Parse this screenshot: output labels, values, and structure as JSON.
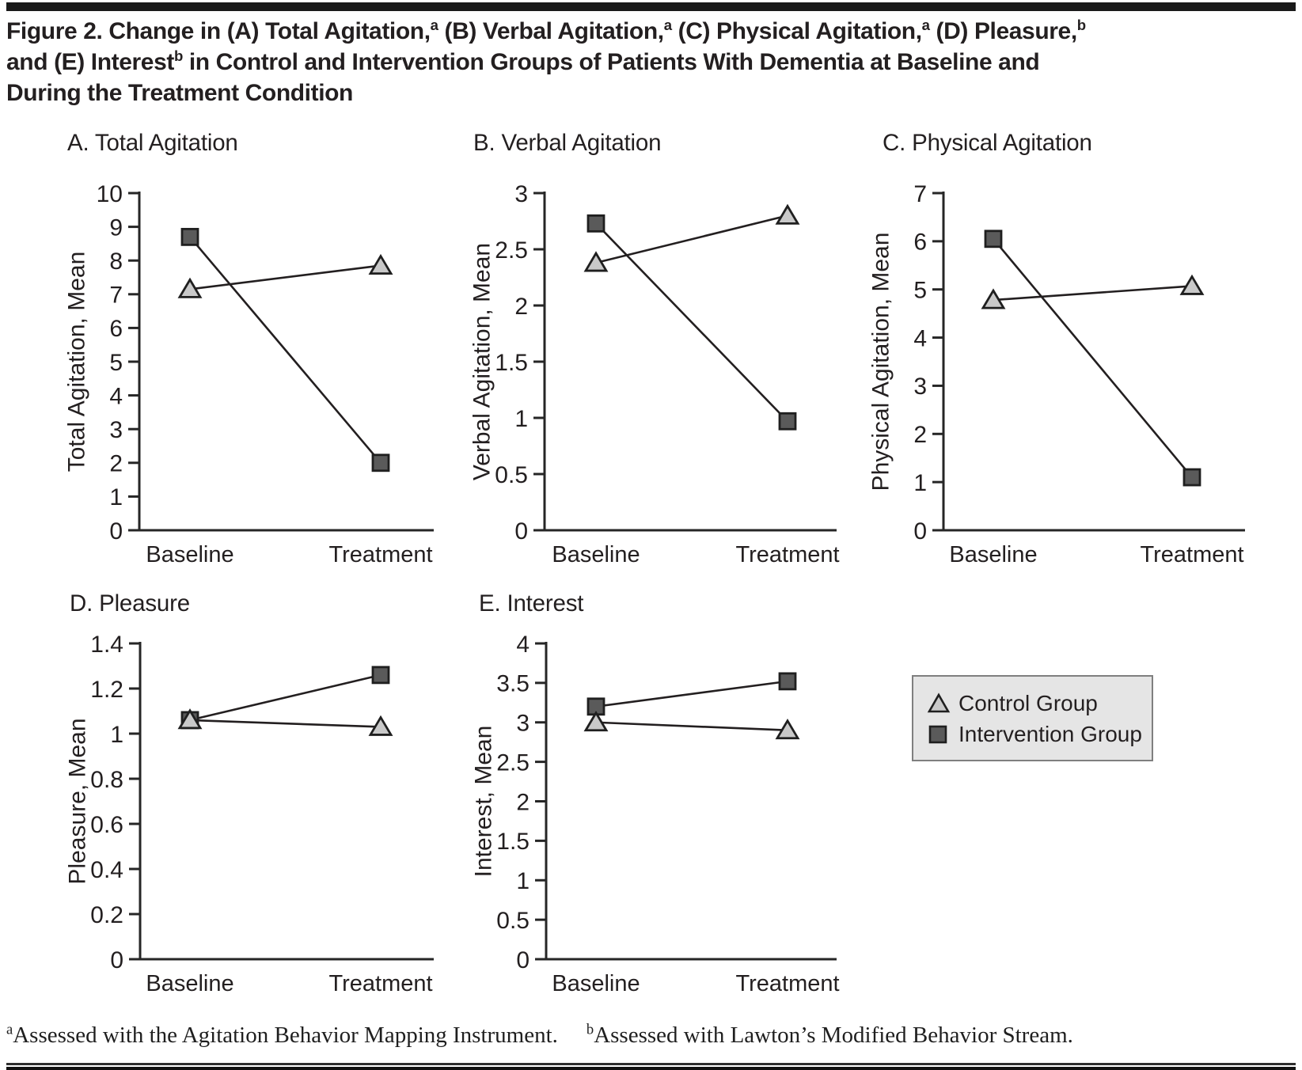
{
  "figure_title": {
    "lines": [
      [
        {
          "t": "Figure 2. Change in (A) Total Agitation,"
        },
        {
          "t": "a",
          "sup": true
        },
        {
          "t": " (B) Verbal Agitation,"
        },
        {
          "t": "a",
          "sup": true
        },
        {
          "t": " (C) Physical Agitation,"
        },
        {
          "t": "a",
          "sup": true
        },
        {
          "t": " (D) Pleasure,"
        },
        {
          "t": "b",
          "sup": true
        }
      ],
      [
        {
          "t": "and (E) Interest"
        },
        {
          "t": "b",
          "sup": true
        },
        {
          "t": " in Control and Intervention Groups of Patients With Dementia at Baseline and"
        }
      ],
      [
        {
          "t": "During the Treatment Condition"
        }
      ]
    ]
  },
  "legend": {
    "items": [
      {
        "label": "Control Group",
        "marker": "triangle"
      },
      {
        "label": "Intervention Group",
        "marker": "square"
      }
    ]
  },
  "footnotes": [
    {
      "sup": "a",
      "text": "Assessed with the Agitation Behavior Mapping Instrument."
    },
    {
      "sup": "b",
      "text": "Assessed with Lawton’s Modified Behavior Stream."
    }
  ],
  "colors": {
    "text": "#231f20",
    "axis": "#262626",
    "line": "#231f20",
    "control_fill": "#c9c9c9",
    "intervention_fill": "#5a5a5a",
    "marker_stroke": "#1f1f1f",
    "legend_bg": "#e5e5e5",
    "legend_border": "#7f7f7f",
    "rule": "#1a1a1a"
  },
  "chart_data": [
    {
      "id": "A",
      "panel_title": "A. Total Agitation",
      "type": "line",
      "categories": [
        "Baseline",
        "Treatment"
      ],
      "ylabel": "Total Agitation, Mean",
      "ylim": [
        0,
        10
      ],
      "yticks": [
        0,
        1,
        2,
        3,
        4,
        5,
        6,
        7,
        8,
        9,
        10
      ],
      "grid": false,
      "series": [
        {
          "name": "Control Group",
          "marker": "triangle",
          "values": [
            7.15,
            7.85
          ]
        },
        {
          "name": "Intervention Group",
          "marker": "square",
          "values": [
            8.7,
            2.0
          ]
        }
      ]
    },
    {
      "id": "B",
      "panel_title": "B. Verbal Agitation",
      "type": "line",
      "categories": [
        "Baseline",
        "Treatment"
      ],
      "ylabel": "Verbal Agitation, Mean",
      "ylim": [
        0,
        3
      ],
      "yticks": [
        0,
        0.5,
        1,
        1.5,
        2,
        2.5,
        3
      ],
      "grid": false,
      "series": [
        {
          "name": "Control Group",
          "marker": "triangle",
          "values": [
            2.38,
            2.8
          ]
        },
        {
          "name": "Intervention Group",
          "marker": "square",
          "values": [
            2.73,
            0.97
          ]
        }
      ]
    },
    {
      "id": "C",
      "panel_title": "C. Physical Agitation",
      "type": "line",
      "categories": [
        "Baseline",
        "Treatment"
      ],
      "ylabel": "Physical Agitation, Mean",
      "ylim": [
        0,
        7
      ],
      "yticks": [
        0,
        1,
        2,
        3,
        4,
        5,
        6,
        7
      ],
      "grid": false,
      "series": [
        {
          "name": "Control Group",
          "marker": "triangle",
          "values": [
            4.78,
            5.07
          ]
        },
        {
          "name": "Intervention Group",
          "marker": "square",
          "values": [
            6.05,
            1.1
          ]
        }
      ]
    },
    {
      "id": "D",
      "panel_title": "D. Pleasure",
      "type": "line",
      "categories": [
        "Baseline",
        "Treatment"
      ],
      "ylabel": "Pleasure, Mean",
      "ylim": [
        0,
        1.4
      ],
      "yticks": [
        0,
        0.2,
        0.4,
        0.6,
        0.8,
        1,
        1.2,
        1.4
      ],
      "grid": false,
      "series": [
        {
          "name": "Control Group",
          "marker": "triangle",
          "values": [
            1.06,
            1.03
          ]
        },
        {
          "name": "Intervention Group",
          "marker": "square",
          "values": [
            1.06,
            1.26
          ]
        }
      ]
    },
    {
      "id": "E",
      "panel_title": "E. Interest",
      "type": "line",
      "categories": [
        "Baseline",
        "Treatment"
      ],
      "ylabel": "Interest, Mean",
      "ylim": [
        0,
        4
      ],
      "yticks": [
        0,
        0.5,
        1,
        1.5,
        2,
        2.5,
        3,
        3.5,
        4
      ],
      "grid": false,
      "series": [
        {
          "name": "Control Group",
          "marker": "triangle",
          "values": [
            3.0,
            2.9
          ]
        },
        {
          "name": "Intervention Group",
          "marker": "square",
          "values": [
            3.2,
            3.52
          ]
        }
      ]
    }
  ]
}
